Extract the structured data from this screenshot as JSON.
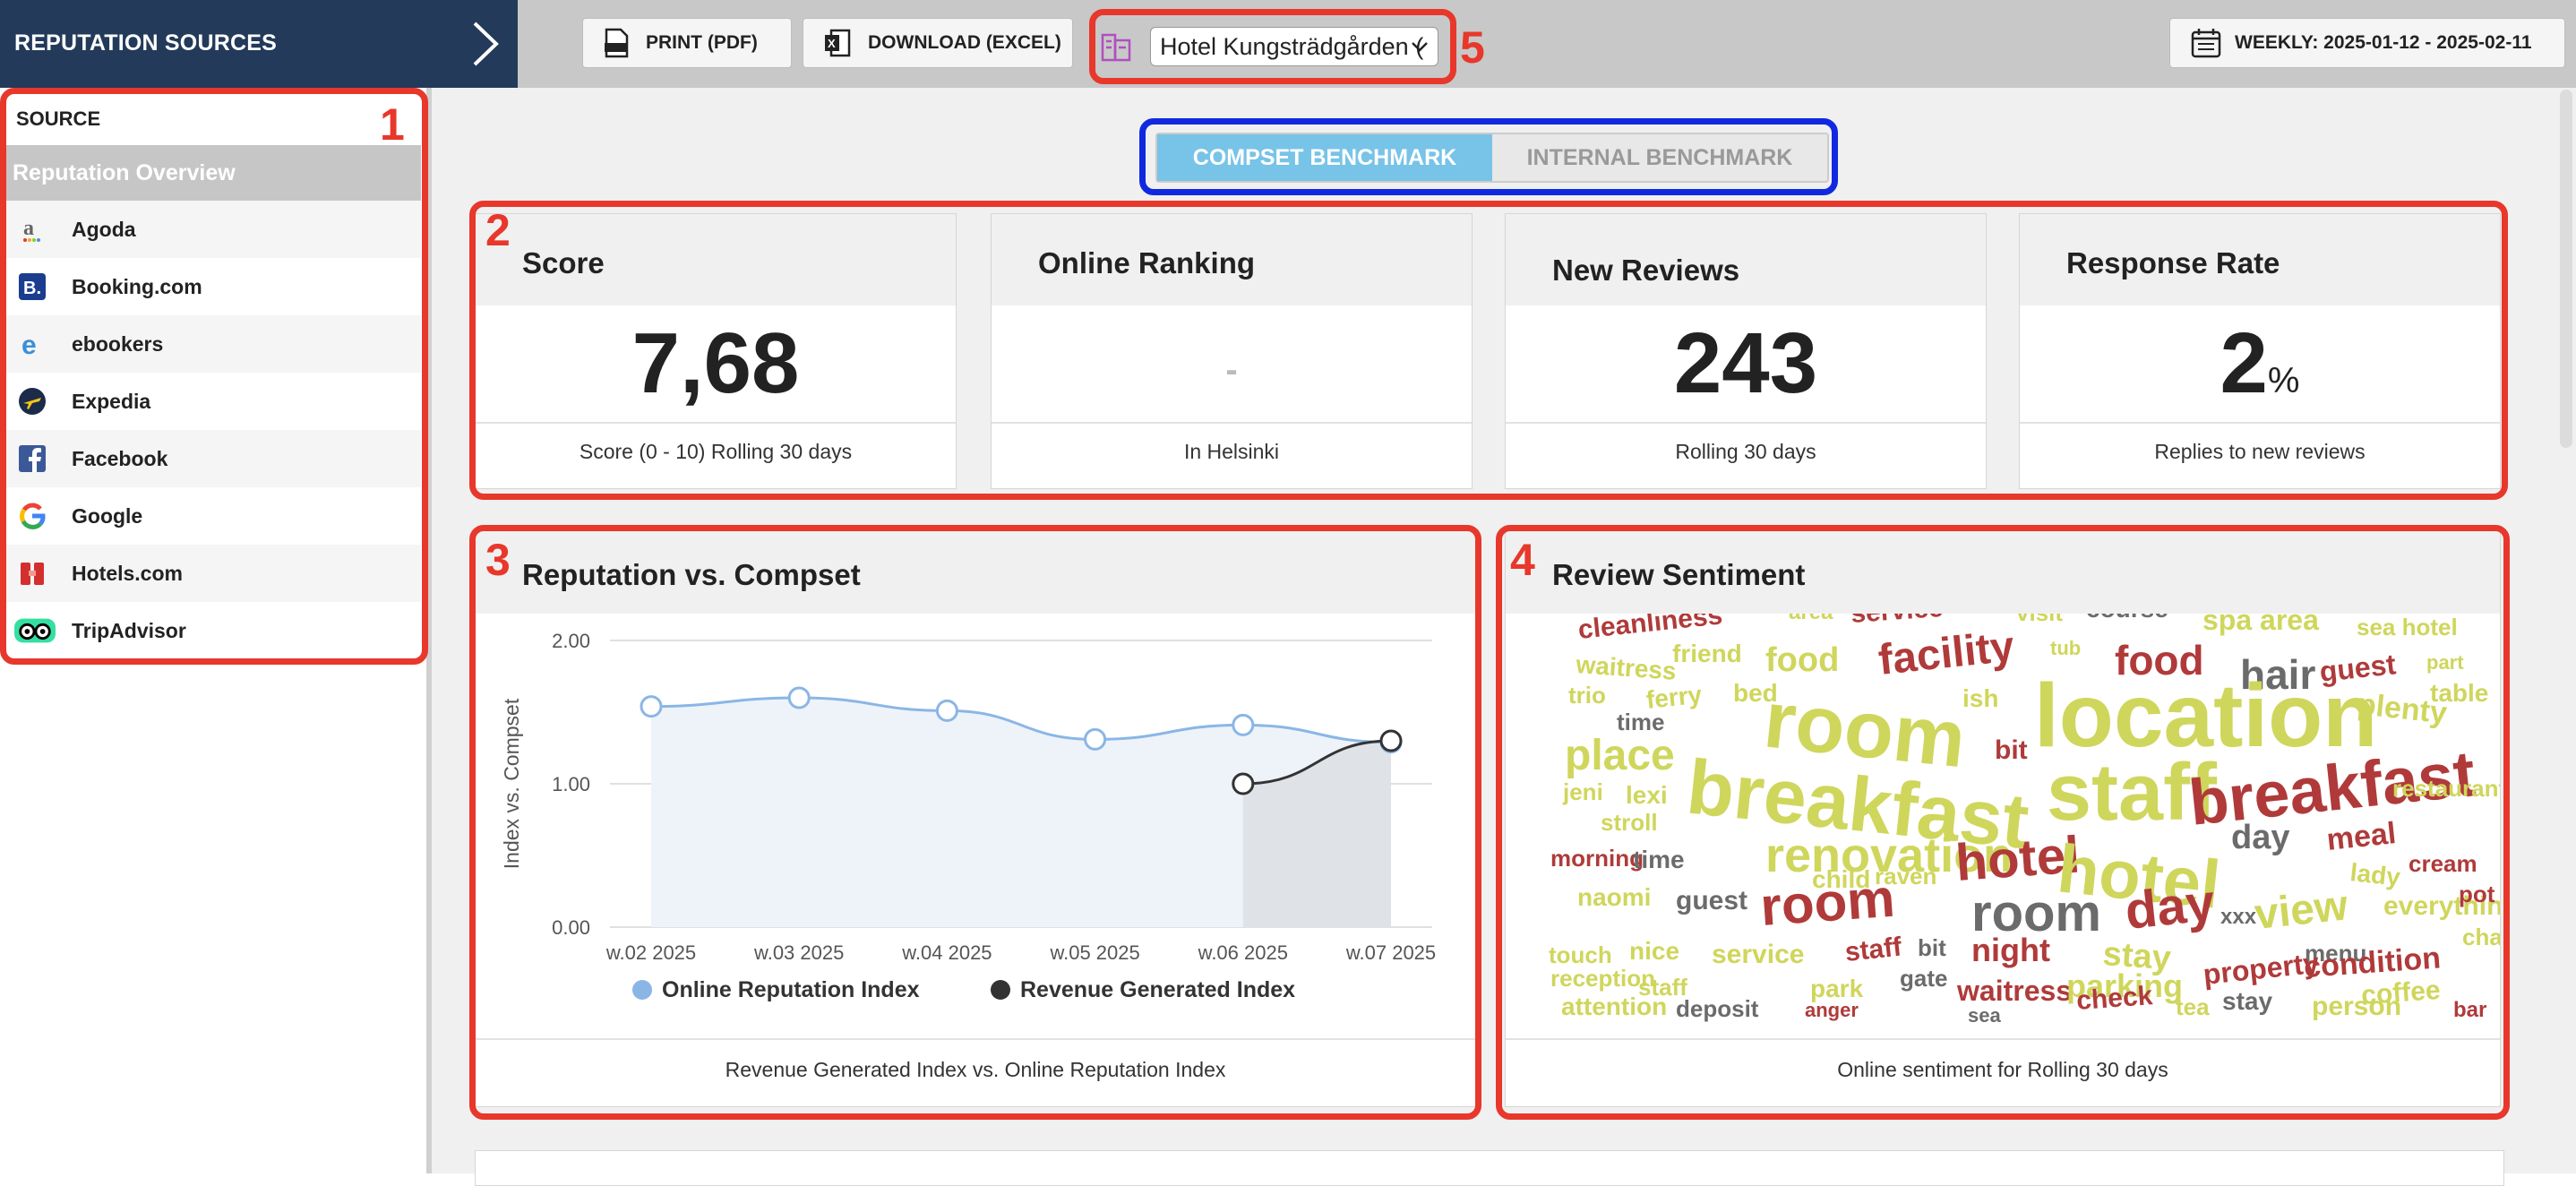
{
  "sidebar": {
    "header_title": "REPUTATION SOURCES",
    "source_label": "SOURCE",
    "overview_label": "Reputation Overview",
    "items": [
      {
        "label": "Agoda",
        "icon": "agoda-icon"
      },
      {
        "label": "Booking.com",
        "icon": "booking-icon"
      },
      {
        "label": "ebookers",
        "icon": "ebookers-icon"
      },
      {
        "label": "Expedia",
        "icon": "expedia-icon"
      },
      {
        "label": "Facebook",
        "icon": "facebook-icon"
      },
      {
        "label": "Google",
        "icon": "google-icon"
      },
      {
        "label": "Hotels.com",
        "icon": "hotels-icon"
      },
      {
        "label": "TripAdvisor",
        "icon": "tripadvisor-icon"
      }
    ]
  },
  "toolbar": {
    "print_label": "PRINT (PDF)",
    "download_label": "DOWNLOAD (EXCEL)",
    "hotel_value": "Hotel Kungsträdgården (",
    "date_label": "WEEKLY: 2025-01-12 - 2025-02-11"
  },
  "annotations": {
    "n1": "1",
    "n2": "2",
    "n3": "3",
    "n4": "4",
    "n5": "5"
  },
  "benchmark": {
    "active": "COMPSET BENCHMARK",
    "inactive": "INTERNAL BENCHMARK"
  },
  "kpis": {
    "score": {
      "title": "Score",
      "value": "7,68",
      "footer": "Score (0 - 10) Rolling 30 days"
    },
    "ranking": {
      "title": "Online Ranking",
      "value": "-",
      "footer": "In Helsinki"
    },
    "reviews": {
      "title": "New Reviews",
      "value": "243",
      "footer": "Rolling 30 days"
    },
    "response": {
      "title": "Response Rate",
      "value": "2",
      "unit": "%",
      "footer": "Replies to new reviews"
    }
  },
  "reputation_panel": {
    "title": "Reputation vs. Compset",
    "footer": "Revenue Generated Index vs. Online Reputation Index"
  },
  "sentiment_panel": {
    "title": "Review Sentiment",
    "footer": "Online sentiment for Rolling 30 days",
    "words": [
      "cleanliness",
      "area",
      "service",
      "visit",
      "course",
      "spa area",
      "sea hotel",
      "waitress",
      "friend",
      "food",
      "facility",
      "tub",
      "food",
      "hair",
      "guest",
      "part",
      "trio",
      "ferry",
      "bed",
      "room",
      "ish",
      "location",
      "plenty",
      "table",
      "place",
      "time",
      "breakfast",
      "bit",
      "staff",
      "breakfast",
      "jeni",
      "lexi",
      "restaurant",
      "stroll",
      "day",
      "meal",
      "morning",
      "time",
      "renovation",
      "child",
      "raven",
      "hotel",
      "hotel",
      "lady",
      "cream",
      "naomi",
      "guest",
      "room",
      "room",
      "day",
      "xxx",
      "view",
      "everything",
      "pot",
      "touch",
      "nice",
      "service",
      "staff",
      "bit",
      "night",
      "stay",
      "menu",
      "chair",
      "reception",
      "staff",
      "park",
      "gate",
      "waitress",
      "parking",
      "property",
      "condition",
      "coffee",
      "attention",
      "deposit",
      "anger",
      "sea",
      "check",
      "tea",
      "stay",
      "person",
      "bar"
    ]
  },
  "colors": {
    "brand_dark": "#233a5a",
    "accent_red": "#e8372b",
    "accent_blue": "#1029e0",
    "toggle_active": "#78c3e8",
    "line_blue": "#8ab6e6",
    "line_dark": "#333333"
  },
  "chart_data": {
    "type": "line",
    "categories": [
      "w.02 2025",
      "w.03 2025",
      "w.04 2025",
      "w.05 2025",
      "w.06 2025",
      "w.07 2025"
    ],
    "ylabel": "Index vs. Compset",
    "ylim": [
      0,
      2
    ],
    "yticks": [
      "0.00",
      "1.00",
      "2.00"
    ],
    "grid": true,
    "legend_position": "bottom",
    "series": [
      {
        "name": "Online Reputation Index",
        "values": [
          1.54,
          1.6,
          1.51,
          1.31,
          1.41,
          1.29
        ]
      },
      {
        "name": "Revenue Generated Index",
        "values": [
          null,
          null,
          null,
          null,
          1.0,
          1.3
        ]
      }
    ]
  }
}
